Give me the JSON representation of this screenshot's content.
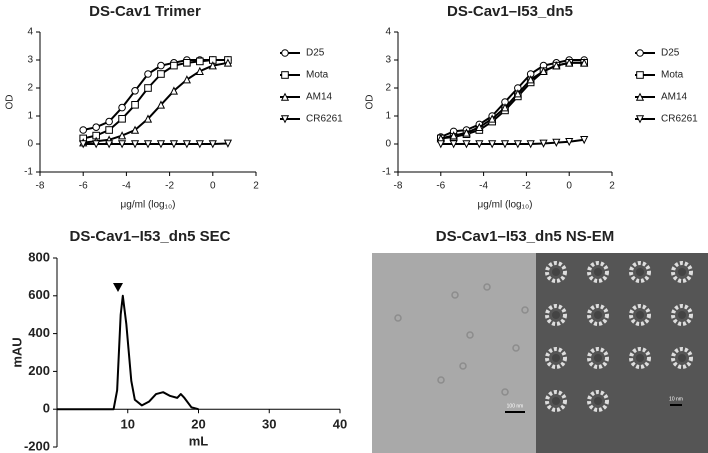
{
  "chart_data": [
    {
      "type": "line",
      "title": "DS-Cav1 Trimer",
      "x_label": "μg/ml (log₁₀)",
      "y_label": "OD",
      "x": [
        -6,
        -5.4,
        -4.8,
        -4.2,
        -3.6,
        -3.0,
        -2.4,
        -1.8,
        -1.2,
        -0.6,
        0,
        0.7
      ],
      "xlim": [
        -8,
        2
      ],
      "xticks": [
        -8,
        -6,
        -4,
        -2,
        0,
        2
      ],
      "ylim": [
        -1,
        4
      ],
      "yticks": [
        -1,
        0,
        1,
        2,
        3,
        4
      ],
      "series": [
        {
          "name": "D25",
          "color": "#000000",
          "marker": "circle",
          "values": [
            0.5,
            0.6,
            0.8,
            1.3,
            1.9,
            2.5,
            2.8,
            2.9,
            3.0,
            3.0,
            3.0,
            3.0
          ]
        },
        {
          "name": "Mota",
          "color": "#000000",
          "marker": "square",
          "values": [
            0.2,
            0.3,
            0.5,
            0.9,
            1.4,
            2.0,
            2.5,
            2.8,
            2.9,
            2.95,
            3.0,
            3.0
          ]
        },
        {
          "name": "AM14",
          "color": "#000000",
          "marker": "triangle",
          "values": [
            0.05,
            0.1,
            0.15,
            0.3,
            0.5,
            0.9,
            1.4,
            1.9,
            2.3,
            2.6,
            2.8,
            2.9
          ]
        },
        {
          "name": "CR6261",
          "color": "#000000",
          "marker": "triangle-down",
          "values": [
            0,
            0,
            0,
            0,
            0,
            0,
            0,
            0,
            0,
            0,
            0,
            0.02
          ]
        }
      ]
    },
    {
      "type": "line",
      "title": "DS-Cav1–I53_dn5",
      "x_label": "μg/ml (log₁₀)",
      "y_label": "OD",
      "x": [
        -6,
        -5.4,
        -4.8,
        -4.2,
        -3.6,
        -3.0,
        -2.4,
        -1.8,
        -1.2,
        -0.6,
        0,
        0.7
      ],
      "xlim": [
        -8,
        2
      ],
      "xticks": [
        -8,
        -6,
        -4,
        -2,
        0,
        2
      ],
      "ylim": [
        -1,
        4
      ],
      "yticks": [
        -1,
        0,
        1,
        2,
        3,
        4
      ],
      "series": [
        {
          "name": "D25",
          "color": "#000000",
          "marker": "circle",
          "values": [
            0.25,
            0.45,
            0.5,
            0.7,
            1.0,
            1.5,
            2.0,
            2.5,
            2.8,
            2.9,
            3.0,
            3.0
          ]
        },
        {
          "name": "Mota",
          "color": "#000000",
          "marker": "square",
          "values": [
            0.2,
            0.25,
            0.35,
            0.5,
            0.8,
            1.2,
            1.7,
            2.2,
            2.6,
            2.8,
            2.9,
            2.9
          ]
        },
        {
          "name": "AM14",
          "color": "#000000",
          "marker": "triangle",
          "values": [
            0.2,
            0.3,
            0.4,
            0.6,
            0.9,
            1.3,
            1.8,
            2.3,
            2.6,
            2.8,
            2.9,
            2.9
          ]
        },
        {
          "name": "CR6261",
          "color": "#000000",
          "marker": "triangle-down",
          "values": [
            0,
            0,
            0,
            0,
            0,
            0,
            0,
            0,
            0.02,
            0.05,
            0.08,
            0.15
          ]
        }
      ]
    },
    {
      "type": "line",
      "title": "DS-Cav1–I53_dn5 SEC",
      "x_label": "mL",
      "y_label": "mAU",
      "x": [
        0,
        5,
        8,
        8.5,
        9,
        9.3,
        9.8,
        10.5,
        11,
        12,
        13,
        14,
        15,
        16,
        17,
        17.5,
        18,
        19,
        20
      ],
      "xlim": [
        0,
        40
      ],
      "xticks": [
        10,
        20,
        30,
        40
      ],
      "ylim": [
        -200,
        800
      ],
      "yticks": [
        -200,
        0,
        200,
        400,
        600,
        800
      ],
      "series": [
        {
          "name": null,
          "color": "#000000",
          "values": [
            0,
            0,
            0,
            100,
            500,
            600,
            450,
            150,
            50,
            20,
            40,
            80,
            90,
            70,
            60,
            80,
            60,
            10,
            0
          ]
        }
      ]
    }
  ],
  "image_panel": {
    "title": "DS-Cav1–I53_dn5 NS-EM",
    "scale_labels": [
      "100 nm",
      "10 nm"
    ]
  }
}
